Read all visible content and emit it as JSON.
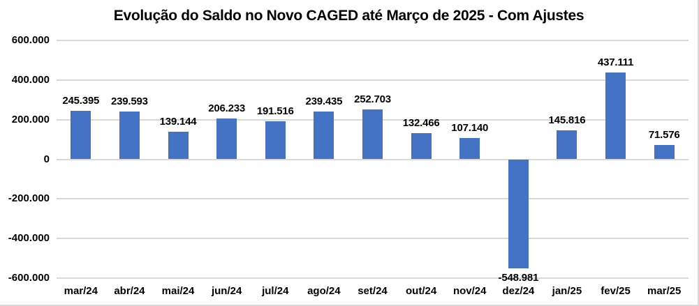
{
  "chart_data": {
    "type": "bar",
    "title": "Evolução do Saldo no Novo CAGED até Março de 2025 - Com Ajustes",
    "categories": [
      "mar/24",
      "abr/24",
      "mai/24",
      "jun/24",
      "jul/24",
      "ago/24",
      "set/24",
      "out/24",
      "nov/24",
      "dez/24",
      "jan/25",
      "fev/25",
      "mar/25"
    ],
    "values": [
      245395,
      239593,
      139144,
      206233,
      191516,
      239435,
      252703,
      132466,
      107140,
      -548981,
      145816,
      437111,
      71576
    ],
    "value_labels": [
      "245.395",
      "239.593",
      "139.144",
      "206.233",
      "191.516",
      "239.435",
      "252.703",
      "132.466",
      "107.140",
      "-548.981",
      "145.816",
      "437.111",
      "71.576"
    ],
    "xlabel": "",
    "ylabel": "",
    "ylim": [
      -600000,
      600000
    ],
    "yticks": [
      {
        "value": 600000,
        "label": "600.000"
      },
      {
        "value": 400000,
        "label": "400.000"
      },
      {
        "value": 200000,
        "label": "200.000"
      },
      {
        "value": 0,
        "label": "0"
      },
      {
        "value": -200000,
        "label": "-200.000"
      },
      {
        "value": -400000,
        "label": "-400.000"
      },
      {
        "value": -600000,
        "label": "-600.000"
      }
    ],
    "grid": "horizontal",
    "legend": "none",
    "bar_color": "#4472C4",
    "gridline_color": "#D9D9D9",
    "text_color": "#000000",
    "background_color": "#FFFFFF"
  }
}
